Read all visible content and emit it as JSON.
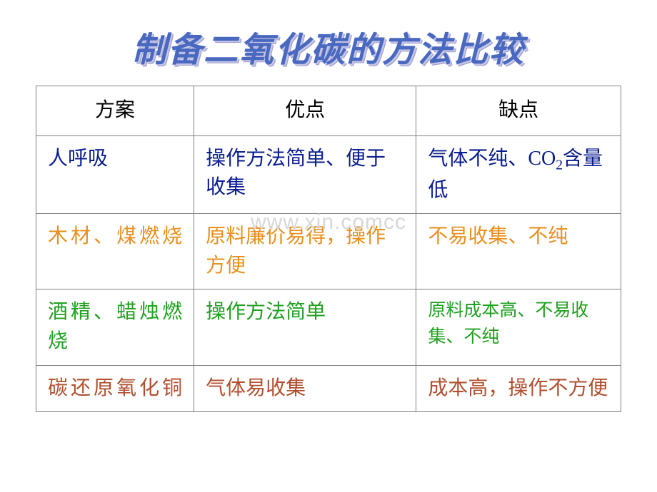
{
  "title": "制备二氧化碳的方法比较",
  "watermark": "www.xin.comcc",
  "headers": {
    "method": "方案",
    "advantage": "优点",
    "disadvantage": "缺点"
  },
  "rows": [
    {
      "colorClass": "row-blue",
      "method": "人呼吸",
      "advantage": "操作方法简单、便于收集",
      "disadvantage_pre": "气体不纯、CO",
      "disadvantage_sub": "2",
      "disadvantage_post": "含量低",
      "hasSubscript": true,
      "methodJustify": false
    },
    {
      "colorClass": "row-orange",
      "method": "木材、煤燃烧",
      "advantage": "原料廉价易得，操作方便",
      "disadvantage": "不易收集、不纯",
      "hasSubscript": false,
      "methodJustify": true
    },
    {
      "colorClass": "row-green",
      "method": "酒精、蜡烛燃烧",
      "advantage": "操作方法简单",
      "disadvantage": "原料成本高、不易收集、不纯",
      "hasSubscript": false,
      "methodJustify": true,
      "disadvantageSmall": true
    },
    {
      "colorClass": "row-brown",
      "method": "碳还原氧化铜",
      "advantage": "气体易收集",
      "disadvantage": "成本高，操作不方便",
      "hasSubscript": false,
      "methodJustify": true
    }
  ]
}
